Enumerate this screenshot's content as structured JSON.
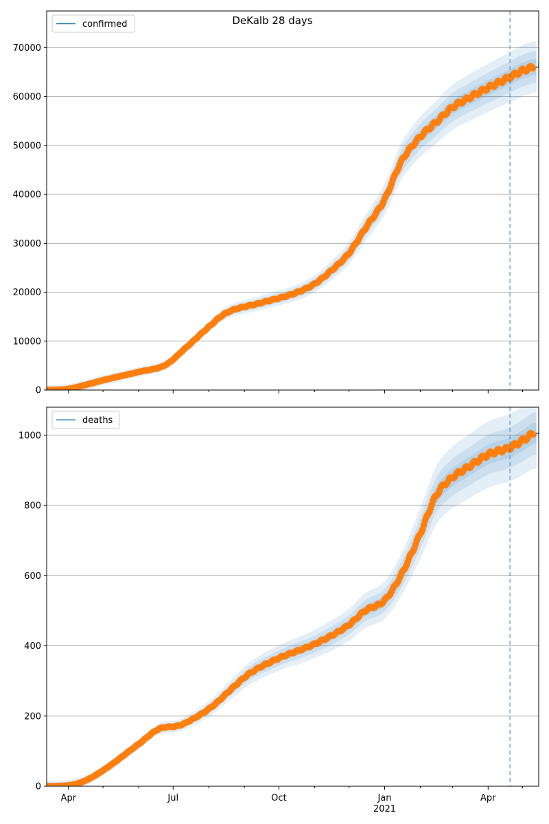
{
  "chart_data": {
    "title": "DeKalb 28 days",
    "type": "line",
    "grid": "horizontal",
    "forecast_start": "2021-04-20",
    "colors": {
      "model_line": "#1f77b4",
      "observed_points": "#ff7f0e",
      "band": "#1f77b4",
      "forecast_line": "#1f77b4",
      "grid": "#b0b0b0"
    },
    "x_axis": {
      "range": [
        "2020-03-13",
        "2021-05-15"
      ],
      "major_ticks": [
        {
          "date": "2020-04-01",
          "label": "Apr",
          "sublabel": ""
        },
        {
          "date": "2020-07-01",
          "label": "Jul",
          "sublabel": ""
        },
        {
          "date": "2020-10-01",
          "label": "Oct",
          "sublabel": ""
        },
        {
          "date": "2021-01-01",
          "label": "Jan",
          "sublabel": "2021"
        },
        {
          "date": "2021-04-01",
          "label": "Apr",
          "sublabel": ""
        }
      ],
      "minor_ticks": [
        "2020-05-01",
        "2020-06-01",
        "2020-08-01",
        "2020-09-01",
        "2020-11-01",
        "2020-12-01",
        "2021-02-01",
        "2021-03-01",
        "2021-05-01"
      ]
    },
    "panels": [
      {
        "legend": "confirmed",
        "legend_position": "top-left",
        "ylim": [
          0,
          77500
        ],
        "yticks": [
          0,
          10000,
          20000,
          30000,
          40000,
          50000,
          60000,
          70000
        ],
        "yticklabels": [
          "0",
          "10000",
          "20000",
          "30000",
          "40000",
          "50000",
          "60000",
          "70000"
        ],
        "model_end": {
          "date": "2021-05-15",
          "value": 66900
        },
        "anchors": [
          {
            "date": "2020-03-13",
            "value": 0
          },
          {
            "date": "2020-03-31",
            "value": 200
          },
          {
            "date": "2020-04-15",
            "value": 1000
          },
          {
            "date": "2020-05-01",
            "value": 2000
          },
          {
            "date": "2020-06-01",
            "value": 3700
          },
          {
            "date": "2020-06-25",
            "value": 5200
          },
          {
            "date": "2020-07-10",
            "value": 8200
          },
          {
            "date": "2020-08-01",
            "value": 12900
          },
          {
            "date": "2020-08-15",
            "value": 15600
          },
          {
            "date": "2020-09-15",
            "value": 17800
          },
          {
            "date": "2020-10-15",
            "value": 19800
          },
          {
            "date": "2020-11-01",
            "value": 21700
          },
          {
            "date": "2020-11-15",
            "value": 24300
          },
          {
            "date": "2020-12-01",
            "value": 28000
          },
          {
            "date": "2020-12-15",
            "value": 33000
          },
          {
            "date": "2021-01-01",
            "value": 39000
          },
          {
            "date": "2021-01-15",
            "value": 46500
          },
          {
            "date": "2021-02-01",
            "value": 51800
          },
          {
            "date": "2021-02-15",
            "value": 54800
          },
          {
            "date": "2021-03-01",
            "value": 57800
          },
          {
            "date": "2021-03-15",
            "value": 59700
          },
          {
            "date": "2021-04-01",
            "value": 61800
          },
          {
            "date": "2021-04-20",
            "value": 64000
          },
          {
            "date": "2021-05-01",
            "value": 65300
          },
          {
            "date": "2021-05-10",
            "value": 66000
          }
        ],
        "band_width": [
          0.025,
          0.05,
          0.08
        ],
        "band_min": [
          300,
          600,
          1000
        ]
      },
      {
        "legend": "deaths",
        "legend_position": "top-left",
        "ylim": [
          0,
          1080
        ],
        "yticks": [
          0,
          200,
          400,
          600,
          800,
          1000
        ],
        "yticklabels": [
          "0",
          "200",
          "400",
          "600",
          "800",
          "1000"
        ],
        "model_end": {
          "date": "2021-05-15",
          "value": 1010
        },
        "anchors": [
          {
            "date": "2020-03-13",
            "value": 0
          },
          {
            "date": "2020-03-31",
            "value": 2
          },
          {
            "date": "2020-04-15",
            "value": 15
          },
          {
            "date": "2020-05-01",
            "value": 45
          },
          {
            "date": "2020-06-01",
            "value": 120
          },
          {
            "date": "2020-06-20",
            "value": 165
          },
          {
            "date": "2020-07-05",
            "value": 172
          },
          {
            "date": "2020-07-20",
            "value": 195
          },
          {
            "date": "2020-08-05",
            "value": 230
          },
          {
            "date": "2020-08-20",
            "value": 275
          },
          {
            "date": "2020-09-05",
            "value": 320
          },
          {
            "date": "2020-10-01",
            "value": 365
          },
          {
            "date": "2020-11-01",
            "value": 405
          },
          {
            "date": "2020-12-01",
            "value": 460
          },
          {
            "date": "2020-12-15",
            "value": 500
          },
          {
            "date": "2021-01-01",
            "value": 530
          },
          {
            "date": "2021-01-15",
            "value": 600
          },
          {
            "date": "2021-02-01",
            "value": 720
          },
          {
            "date": "2021-02-15",
            "value": 830
          },
          {
            "date": "2021-03-01",
            "value": 880
          },
          {
            "date": "2021-03-15",
            "value": 910
          },
          {
            "date": "2021-04-01",
            "value": 945
          },
          {
            "date": "2021-04-20",
            "value": 965
          },
          {
            "date": "2021-05-01",
            "value": 985
          },
          {
            "date": "2021-05-10",
            "value": 1005
          }
        ],
        "band_width": [
          0.03,
          0.06,
          0.1
        ],
        "band_min": [
          5,
          10,
          15
        ]
      }
    ]
  }
}
